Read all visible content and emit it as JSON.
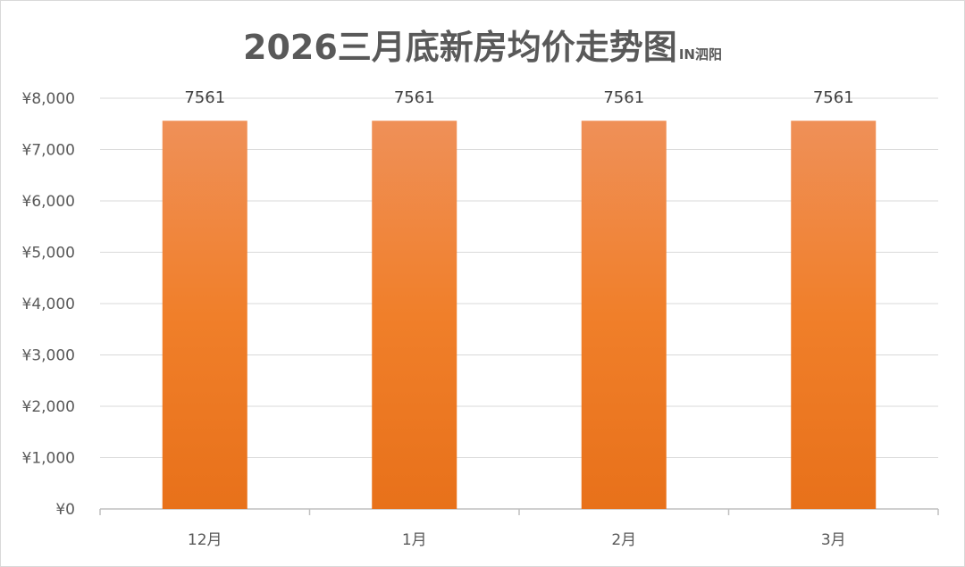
{
  "chart_data": {
    "type": "bar",
    "title": "2026三月底新房均价走势图",
    "subtitle": "IN泗阳",
    "categories": [
      "12月",
      "1月",
      "2月",
      "3月"
    ],
    "values": [
      7561,
      7561,
      7561,
      7561
    ],
    "data_labels": [
      "7561",
      "7561",
      "7561",
      "7561"
    ],
    "ylim": [
      0,
      8000
    ],
    "yticks": [
      0,
      1000,
      2000,
      3000,
      4000,
      5000,
      6000,
      7000,
      8000
    ],
    "ytick_labels": [
      "¥0",
      "¥1,000",
      "¥2,000",
      "¥3,000",
      "¥4,000",
      "¥5,000",
      "¥6,000",
      "¥7,000",
      "¥8,000"
    ],
    "grid": true,
    "legend": "none",
    "colors": {
      "bar_top": "#ef9058",
      "bar_mid": "#f07f2a",
      "bar_bottom": "#e8711a",
      "grid": "#d9d9d9",
      "axis": "#bfbfbf",
      "text": "#595959"
    }
  }
}
